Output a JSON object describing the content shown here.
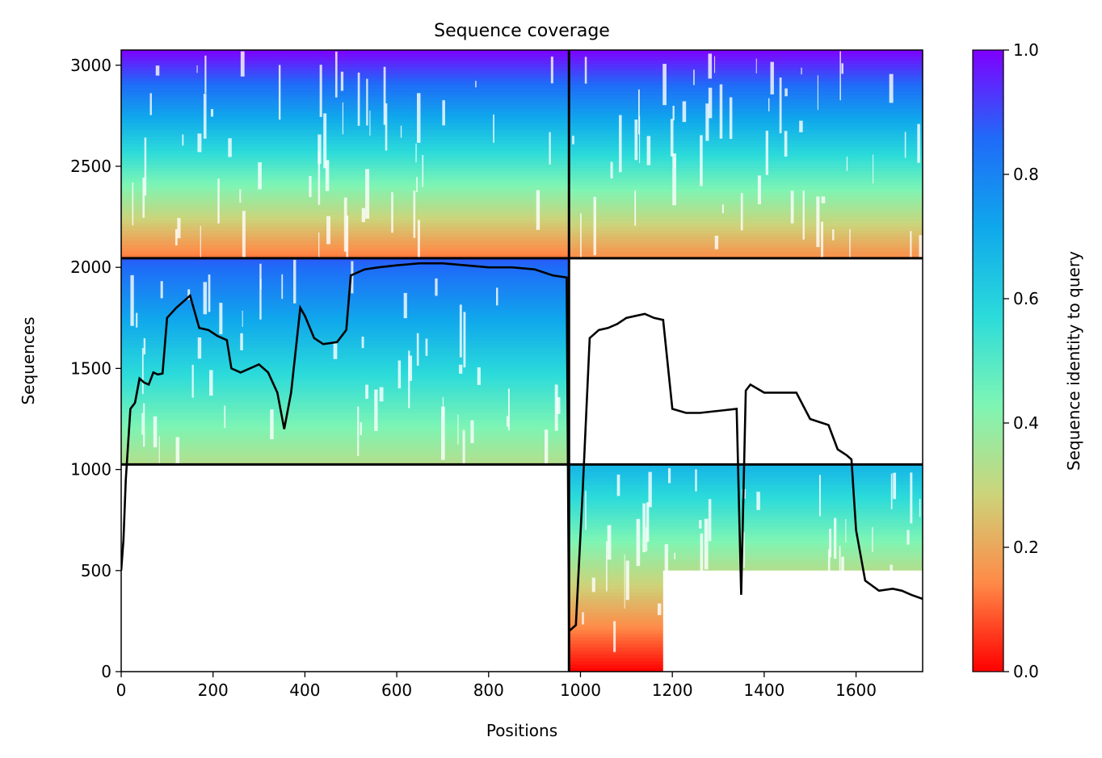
{
  "chart_data": {
    "type": "heatmap",
    "title": "Sequence coverage",
    "xlabel": "Positions",
    "ylabel": "Sequences",
    "xlim": [
      0,
      1745
    ],
    "ylim": [
      0,
      3075
    ],
    "x_ticks": [
      0,
      200,
      400,
      600,
      800,
      1000,
      1200,
      1400,
      1600
    ],
    "y_ticks": [
      0,
      500,
      1000,
      1500,
      2000,
      2500,
      3000
    ],
    "colorbar": {
      "label": "Sequence identity to query",
      "range": [
        0,
        1
      ],
      "ticks": [
        "0.0",
        "0.2",
        "0.4",
        "0.6",
        "0.8",
        "1.0"
      ],
      "colormap": "rainbow_r",
      "stops": [
        "#ff0000",
        "#ff8a47",
        "#ccd47a",
        "#7ef5b4",
        "#2bdbda",
        "#0fa8ec",
        "#1f6bf8",
        "#7f00ff"
      ]
    },
    "chain_boundary_x": 975,
    "row_boundaries_y": [
      1025,
      2045
    ],
    "blocks": [
      {
        "x": [
          0,
          975
        ],
        "y": [
          2045,
          3075
        ],
        "identity": [
          0.12,
          1.0
        ]
      },
      {
        "x": [
          975,
          1745
        ],
        "y": [
          2045,
          3075
        ],
        "identity": [
          0.15,
          1.0
        ]
      },
      {
        "x": [
          0,
          975
        ],
        "y": [
          1025,
          2045
        ],
        "identity": [
          0.33,
          0.88
        ]
      },
      {
        "x": [
          975,
          1745
        ],
        "y": [
          0,
          1025
        ],
        "identity": [
          0.0,
          0.68
        ]
      }
    ],
    "coverage_line": {
      "name": "coverage",
      "color": "#000000",
      "x": [
        0,
        5,
        10,
        20,
        30,
        40,
        50,
        60,
        70,
        80,
        90,
        100,
        120,
        150,
        170,
        190,
        210,
        230,
        240,
        260,
        280,
        300,
        320,
        340,
        355,
        370,
        390,
        400,
        420,
        440,
        470,
        490,
        500,
        530,
        560,
        600,
        650,
        700,
        750,
        800,
        850,
        900,
        940,
        970,
        975,
        990,
        1005,
        1020,
        1040,
        1060,
        1080,
        1100,
        1120,
        1140,
        1160,
        1180,
        1200,
        1230,
        1260,
        1300,
        1340,
        1350,
        1360,
        1370,
        1400,
        1430,
        1470,
        1500,
        1540,
        1560,
        1580,
        1590,
        1600,
        1620,
        1650,
        1680,
        1700,
        1720,
        1745
      ],
      "y": [
        500,
        650,
        950,
        1300,
        1330,
        1450,
        1430,
        1420,
        1480,
        1470,
        1475,
        1750,
        1800,
        1860,
        1700,
        1690,
        1660,
        1640,
        1500,
        1480,
        1500,
        1520,
        1480,
        1380,
        1200,
        1380,
        1800,
        1760,
        1650,
        1620,
        1630,
        1690,
        1960,
        1990,
        2000,
        2010,
        2020,
        2020,
        2010,
        2000,
        2000,
        1990,
        1960,
        1950,
        200,
        230,
        900,
        1650,
        1690,
        1700,
        1720,
        1750,
        1760,
        1770,
        1750,
        1740,
        1300,
        1280,
        1280,
        1290,
        1300,
        380,
        1390,
        1420,
        1380,
        1380,
        1380,
        1250,
        1220,
        1100,
        1070,
        1050,
        700,
        450,
        400,
        410,
        400,
        380,
        360
      ]
    }
  }
}
